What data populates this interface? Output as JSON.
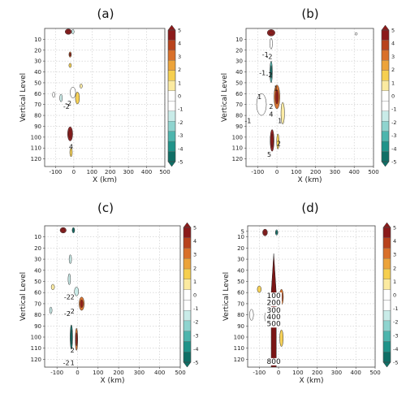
{
  "colorbar": {
    "ticks": [
      "5",
      "4",
      "3",
      "2",
      "1",
      "0",
      "-1",
      "-2",
      "-3",
      "-4",
      "-5"
    ],
    "colors": [
      "#8b1a1a",
      "#b8421c",
      "#d9702a",
      "#eca33a",
      "#f6cf4f",
      "#fbeaa0",
      "#ffffff",
      "#ffffff",
      "#c9ebe8",
      "#8fd4cf",
      "#4db5ad",
      "#1f9389",
      "#0f6f66"
    ]
  },
  "chart_data": [
    {
      "type": "heatmap",
      "title": "(a)",
      "xlabel": "X (km)",
      "ylabel": "Vertical Level",
      "xlim": [
        -160,
        500
      ],
      "ylim": [
        0,
        127
      ],
      "xticks": [
        "-100",
        "0",
        "100",
        "200",
        "300",
        "400",
        "500"
      ],
      "yticks": [
        "10",
        "20",
        "30",
        "40",
        "50",
        "60",
        "70",
        "80",
        "90",
        "100",
        "110",
        "120"
      ],
      "colorbar_range": [
        -5,
        5
      ],
      "contour_labels": [
        {
          "text": "-2",
          "x": -30,
          "y": 71
        },
        {
          "text": "-2",
          "x": -40,
          "y": 74
        },
        {
          "text": "4",
          "x": -15,
          "y": 111
        }
      ],
      "features": [
        {
          "x": -30,
          "y": 3,
          "w": 35,
          "h": 5,
          "v": 5
        },
        {
          "x": -5,
          "y": 3,
          "w": 12,
          "h": 4,
          "v": -2
        },
        {
          "x": -20,
          "y": 24,
          "w": 4,
          "h": 5,
          "v": 3
        },
        {
          "x": -20,
          "y": 34,
          "w": 4,
          "h": 4,
          "v": 2
        },
        {
          "x": -70,
          "y": 64,
          "w": 14,
          "h": 7,
          "v": -2
        },
        {
          "x": -110,
          "y": 61,
          "w": 8,
          "h": 5,
          "v": -1
        },
        {
          "x": -5,
          "y": 59,
          "w": 30,
          "h": 10,
          "v": -1
        },
        {
          "x": 20,
          "y": 64,
          "w": 22,
          "h": 11,
          "v": 2
        },
        {
          "x": 40,
          "y": 53,
          "w": 12,
          "h": 4,
          "v": 1
        },
        {
          "x": -20,
          "y": 97,
          "w": 28,
          "h": 13,
          "v": 5
        },
        {
          "x": -15,
          "y": 114,
          "w": 12,
          "h": 8,
          "v": 2
        }
      ]
    },
    {
      "type": "heatmap",
      "title": "(b)",
      "xlabel": "X (km)",
      "ylabel": "Vertical Level",
      "xlim": [
        -160,
        500
      ],
      "ylim": [
        0,
        127
      ],
      "xticks": [
        "-100",
        "0",
        "100",
        "200",
        "300",
        "400",
        "500"
      ],
      "yticks": [
        "10",
        "20",
        "30",
        "40",
        "50",
        "60",
        "70",
        "80",
        "90",
        "100",
        "110",
        "120"
      ],
      "colorbar_range": [
        -5,
        5
      ],
      "contour_labels": [
        {
          "text": "-1",
          "x": -60,
          "y": 26
        },
        {
          "text": "-2",
          "x": -40,
          "y": 28
        },
        {
          "text": "-1",
          "x": -75,
          "y": 43
        },
        {
          "text": "-2",
          "x": -40,
          "y": 45
        },
        {
          "text": "1",
          "x": -90,
          "y": 65
        },
        {
          "text": "1",
          "x": -5,
          "y": 57
        },
        {
          "text": "2",
          "x": -30,
          "y": 74
        },
        {
          "text": "4",
          "x": -30,
          "y": 81
        },
        {
          "text": "-1",
          "x": -150,
          "y": 87
        },
        {
          "text": "1",
          "x": 15,
          "y": 87
        },
        {
          "text": "2",
          "x": 10,
          "y": 108
        },
        {
          "text": "5",
          "x": -40,
          "y": 118
        }
      ],
      "features": [
        {
          "x": -30,
          "y": 4,
          "w": 40,
          "h": 6,
          "v": 5
        },
        {
          "x": -30,
          "y": 14,
          "w": 6,
          "h": 10,
          "v": -1
        },
        {
          "x": -30,
          "y": 40,
          "w": 8,
          "h": 20,
          "v": -3
        },
        {
          "x": -80,
          "y": 70,
          "w": 50,
          "h": 20,
          "v": -1
        },
        {
          "x": 0,
          "y": 63,
          "w": 30,
          "h": 22,
          "v": 3
        },
        {
          "x": 30,
          "y": 78,
          "w": 18,
          "h": 20,
          "v": 1
        },
        {
          "x": 410,
          "y": 5,
          "w": 8,
          "h": 2,
          "v": -1
        },
        {
          "x": -25,
          "y": 103,
          "w": 20,
          "h": 20,
          "v": 5
        },
        {
          "x": 5,
          "y": 104,
          "w": 10,
          "h": 14,
          "v": 2
        }
      ]
    },
    {
      "type": "heatmap",
      "title": "(c)",
      "xlabel": "X (km)",
      "ylabel": "Vertical Level",
      "xlim": [
        -160,
        500
      ],
      "ylim": [
        0,
        127
      ],
      "xticks": [
        "-100",
        "0",
        "100",
        "200",
        "300",
        "400",
        "500"
      ],
      "yticks": [
        "10",
        "20",
        "30",
        "40",
        "50",
        "60",
        "70",
        "80",
        "90",
        "100",
        "110",
        "120"
      ],
      "colorbar_range": [
        -5,
        5
      ],
      "contour_labels": [
        {
          "text": "-2",
          "x": -50,
          "y": 66
        },
        {
          "text": "2",
          "x": -25,
          "y": 66
        },
        {
          "text": "-2",
          "x": -50,
          "y": 81
        },
        {
          "text": "-2",
          "x": -30,
          "y": 79
        },
        {
          "text": "2",
          "x": -25,
          "y": 114
        },
        {
          "text": "-2",
          "x": -55,
          "y": 125
        },
        {
          "text": "1",
          "x": -25,
          "y": 125
        }
      ],
      "features": [
        {
          "x": -70,
          "y": 4,
          "w": 30,
          "h": 5,
          "v": 5
        },
        {
          "x": -20,
          "y": 4,
          "w": 12,
          "h": 5,
          "v": -4
        },
        {
          "x": -35,
          "y": 30,
          "w": 6,
          "h": 8,
          "v": -2
        },
        {
          "x": -40,
          "y": 48,
          "w": 6,
          "h": 10,
          "v": -2
        },
        {
          "x": -120,
          "y": 55,
          "w": 16,
          "h": 5,
          "v": 1
        },
        {
          "x": -130,
          "y": 76,
          "w": 12,
          "h": 6,
          "v": -2
        },
        {
          "x": 20,
          "y": 70,
          "w": 25,
          "h": 12,
          "v": 3
        },
        {
          "x": -5,
          "y": 59,
          "w": 20,
          "h": 8,
          "v": -2
        },
        {
          "x": -30,
          "y": 100,
          "w": 9,
          "h": 22,
          "v": -5
        },
        {
          "x": -5,
          "y": 102,
          "w": 8,
          "h": 20,
          "v": 3
        }
      ]
    },
    {
      "type": "heatmap",
      "title": "(d)",
      "xlabel": "X (km)",
      "ylabel": "Vertical Level",
      "xlim": [
        -160,
        500
      ],
      "ylim": [
        0,
        127
      ],
      "xticks": [
        "-100",
        "0",
        "100",
        "200",
        "300",
        "400",
        "500"
      ],
      "yticks": [
        "5",
        "10",
        "20",
        "30",
        "40",
        "50",
        "60",
        "70",
        "80",
        "90",
        "100",
        "110",
        "120"
      ],
      "colorbar_range": [
        -5,
        5
      ],
      "contour_labels": [
        {
          "text": "100",
          "x": -25,
          "y": 65
        },
        {
          "text": "200",
          "x": -25,
          "y": 71
        },
        {
          "text": "300",
          "x": -25,
          "y": 78
        },
        {
          "text": "400",
          "x": -25,
          "y": 84
        },
        {
          "text": "500",
          "x": -25,
          "y": 90
        },
        {
          "text": "800",
          "x": -25,
          "y": 124
        }
      ],
      "features": [
        {
          "x": -70,
          "y": 6,
          "w": 25,
          "h": 6,
          "v": 5
        },
        {
          "x": -10,
          "y": 6,
          "w": 12,
          "h": 5,
          "v": -3
        },
        {
          "x": -100,
          "y": 57,
          "w": 20,
          "h": 6,
          "v": 2
        },
        {
          "x": -140,
          "y": 80,
          "w": 20,
          "h": 10,
          "v": -1
        },
        {
          "x": 15,
          "y": 64,
          "w": 20,
          "h": 14,
          "v": 3
        },
        {
          "x": 15,
          "y": 101,
          "w": 18,
          "h": 15,
          "v": 2
        },
        {
          "x": -65,
          "y": 82,
          "w": 14,
          "h": 8,
          "v": -1
        }
      ]
    }
  ]
}
